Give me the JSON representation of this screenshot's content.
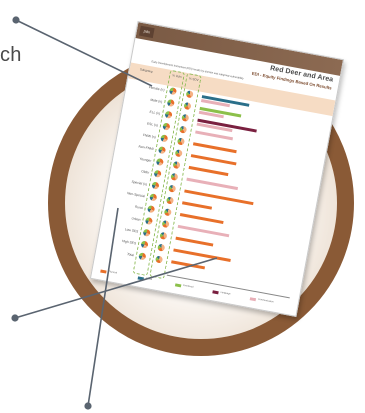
{
  "caption": {
    "fragment": "ch"
  },
  "report": {
    "brand": "pdx",
    "title": "Red Deer and Area",
    "subtitle": "EDI - Equity Findings Based On Results",
    "subline": "Early Development Instrument (EDI) results by domain and subgroup vulnerability",
    "column_headers": [
      "% Vuln",
      "% SDV"
    ],
    "header_left": "Subgroup",
    "rows": [
      "Female (n)",
      "Male (n)",
      "ELL (n)",
      "ESL (n)",
      "FNMI (n)",
      "Non-FNMI",
      "Younger",
      "Older",
      "Special (n)",
      "Non-Special",
      "Rural",
      "Urban",
      "Low SES",
      "High SES",
      "Total"
    ],
    "legend": [
      "Physical",
      "Social",
      "Emotional",
      "Language",
      "Communication"
    ]
  },
  "colors": {
    "ring": "#8a5a36",
    "header": "#7a5a44",
    "bar_orange": "#e8702a",
    "bar_teal": "#2a6f8a",
    "bar_green": "#8cc04a",
    "bar_maroon": "#7a2040",
    "bar_pink": "#e8b0b8",
    "peach": "#f6dcc4"
  }
}
